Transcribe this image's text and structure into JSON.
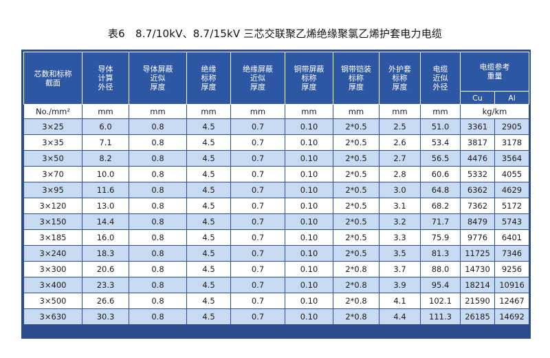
{
  "title": "表6　8.7/10kV、8.7/15kV 三芯交联聚乙烯绝缘聚氯乙烯护套电力电缆",
  "headers": [
    "芯数和标称\n截面",
    "导体\n计算\n外径",
    "导体屏蔽\n近似\n厚度",
    "绝缘\n标称\n厚度",
    "绝缘屏蔽\n近似\n厚度",
    "铜带屏蔽\n标称\n厚度",
    "钢带铠装\n标称\n厚度",
    "外护套\n标称\n厚度",
    "电缆\n近似\n外径",
    "电缆参考\n重量"
  ],
  "weight_sub": [
    "Cu",
    "Al"
  ],
  "units": [
    "No./mm²",
    "mm",
    "mm",
    "mm",
    "mm",
    "mm",
    "mm",
    "mm",
    "mm",
    "kg/km"
  ],
  "rows": [
    [
      "3×25",
      "6.0",
      "0.8",
      "4.5",
      "0.7",
      "0.10",
      "2*0.5",
      "2.5",
      "51.0",
      "3361",
      "2905"
    ],
    [
      "3×35",
      "7.1",
      "0.8",
      "4.5",
      "0.7",
      "0.10",
      "2*0.5",
      "2.6",
      "53.4",
      "3817",
      "3178"
    ],
    [
      "3×50",
      "8.2",
      "0.8",
      "4.5",
      "0.7",
      "0.10",
      "2*0.5",
      "2.7",
      "56.5",
      "4476",
      "3564"
    ],
    [
      "3×70",
      "10.0",
      "0.8",
      "4.5",
      "0.7",
      "0.10",
      "2*0.5",
      "2.8",
      "60.6",
      "5332",
      "4055"
    ],
    [
      "3×95",
      "11.6",
      "0.8",
      "4.5",
      "0.7",
      "0.10",
      "2*0.5",
      "3.0",
      "64.8",
      "6362",
      "4629"
    ],
    [
      "3×120",
      "13.0",
      "0.8",
      "4.5",
      "0.7",
      "0.10",
      "2*0.5",
      "3.1",
      "68.2",
      "7362",
      "5172"
    ],
    [
      "3×150",
      "14.4",
      "0.8",
      "4.5",
      "0.7",
      "0.10",
      "2*0.5",
      "3.2",
      "71.7",
      "8479",
      "5743"
    ],
    [
      "3×185",
      "16.0",
      "0.8",
      "4.5",
      "0.7",
      "0.10",
      "2*0.5",
      "3.3",
      "75.9",
      "9776",
      "6401"
    ],
    [
      "3×240",
      "18.3",
      "0.8",
      "4.5",
      "0.7",
      "0.10",
      "2*0.5",
      "3.5",
      "81.3",
      "11725",
      "7346"
    ],
    [
      "3×300",
      "20.6",
      "0.8",
      "4.5",
      "0.7",
      "0.10",
      "2*0.8",
      "3.7",
      "88.0",
      "14730",
      "9256"
    ],
    [
      "3×400",
      "23.3",
      "0.8",
      "4.5",
      "0.7",
      "0.10",
      "2*0.8",
      "3.9",
      "95.4",
      "18214",
      "10916"
    ],
    [
      "3×500",
      "26.6",
      "0.8",
      "4.5",
      "0.7",
      "0.10",
      "2*0.8",
      "4.1",
      "102.1",
      "21590",
      "12467"
    ],
    [
      "3×630",
      "30.3",
      "0.8",
      "4.5",
      "0.7",
      "0.10",
      "2*0.8",
      "4.4",
      "111.3",
      "26185",
      "14692"
    ]
  ],
  "colors": {
    "header": "#2d57a3",
    "stripe": "#c8daf2",
    "border": "#2b4d8e"
  }
}
